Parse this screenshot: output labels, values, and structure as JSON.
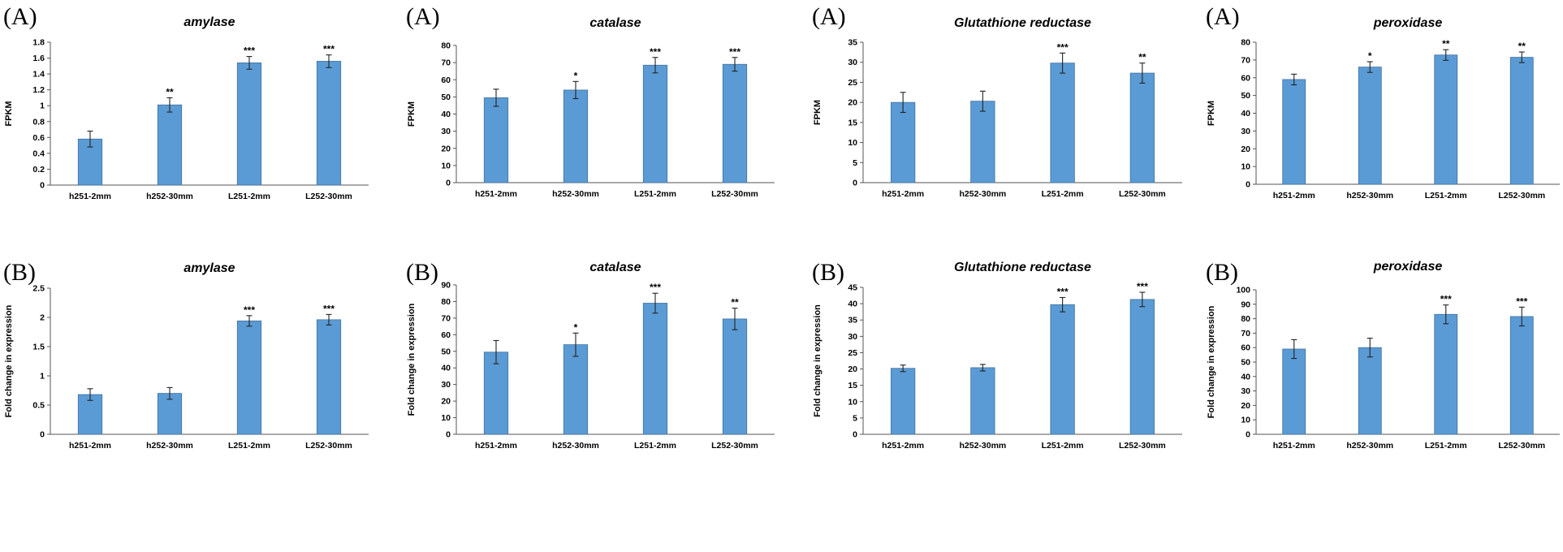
{
  "chart_data": [
    {
      "type": "bar",
      "panel": "(A)",
      "title": "amylase",
      "ylabel": "FPKM",
      "xlabel": "",
      "categories": [
        "h251-2mm",
        "h252-30mm",
        "L251-2mm",
        "L252-30mm"
      ],
      "values": [
        0.58,
        1.01,
        1.54,
        1.56
      ],
      "errors": [
        0.1,
        0.09,
        0.08,
        0.08
      ],
      "significance": [
        "",
        "**",
        "***",
        "***"
      ],
      "ylim": [
        0,
        1.8
      ],
      "ytick_labels": [
        "0",
        "0.2",
        "0.4",
        "0.6",
        "0.8",
        "1",
        "1.2",
        "1.4",
        "1.6",
        "1.8"
      ]
    },
    {
      "type": "bar",
      "panel": "(A)",
      "title": "catalase",
      "ylabel": "FPKM",
      "xlabel": "",
      "categories": [
        "h251-2mm",
        "h252-30mm",
        "L251-2mm",
        "L252-30mm"
      ],
      "values": [
        49.5,
        54,
        68.5,
        69
      ],
      "errors": [
        5,
        5,
        4.5,
        4
      ],
      "significance": [
        "",
        "*",
        "***",
        "***"
      ],
      "ylim": [
        0,
        80
      ],
      "ytick_labels": [
        "0",
        "10",
        "20",
        "30",
        "40",
        "50",
        "60",
        "70",
        "80"
      ]
    },
    {
      "type": "bar",
      "panel": "(A)",
      "title": "Glutathione reductase",
      "ylabel": "FPKM",
      "xlabel": "",
      "categories": [
        "h251-2mm",
        "h252-30mm",
        "L251-2mm",
        "L252-30mm"
      ],
      "values": [
        20,
        20.3,
        29.8,
        27.3
      ],
      "errors": [
        2.5,
        2.5,
        2.5,
        2.5
      ],
      "significance": [
        "",
        "",
        "***",
        "**"
      ],
      "ylim": [
        0,
        35
      ],
      "ytick_labels": [
        "0",
        "5",
        "10",
        "15",
        "20",
        "25",
        "30",
        "35"
      ]
    },
    {
      "type": "bar",
      "panel": "(A)",
      "title": "peroxidase",
      "ylabel": "FPKM",
      "xlabel": "",
      "categories": [
        "h251-2mm",
        "h252-30mm",
        "L251-2mm",
        "L252-30mm"
      ],
      "values": [
        59,
        66,
        72.8,
        71.5
      ],
      "errors": [
        3,
        3,
        3,
        3
      ],
      "significance": [
        "",
        "*",
        "**",
        "**"
      ],
      "ylim": [
        0,
        80
      ],
      "ytick_labels": [
        "0",
        "10",
        "20",
        "30",
        "40",
        "50",
        "60",
        "70",
        "80"
      ]
    },
    {
      "type": "bar",
      "panel": "(B)",
      "title": "amylase",
      "ylabel": "Fold change in expression",
      "xlabel": "",
      "categories": [
        "h251-2mm",
        "h252-30mm",
        "L251-2mm",
        "L252-30mm"
      ],
      "values": [
        0.68,
        0.7,
        1.94,
        1.96
      ],
      "errors": [
        0.1,
        0.1,
        0.09,
        0.09
      ],
      "significance": [
        "",
        "",
        "***",
        "***"
      ],
      "ylim": [
        0,
        2.5
      ],
      "ytick_labels": [
        "0",
        "0.5",
        "1",
        "1.5",
        "2",
        "2.5"
      ]
    },
    {
      "type": "bar",
      "panel": "(B)",
      "title": "catalase",
      "ylabel": "Fold change in expression",
      "xlabel": "",
      "categories": [
        "h251-2mm",
        "h252-30mm",
        "L251-2mm",
        "L252-30mm"
      ],
      "values": [
        49.5,
        54,
        79,
        69.5
      ],
      "errors": [
        7,
        7,
        6,
        6.5
      ],
      "significance": [
        "",
        "*",
        "***",
        "**"
      ],
      "ylim": [
        0,
        90
      ],
      "ytick_labels": [
        "0",
        "10",
        "20",
        "30",
        "40",
        "50",
        "60",
        "70",
        "80",
        "90"
      ]
    },
    {
      "type": "bar",
      "panel": "(B)",
      "title": "Glutathione reductase",
      "ylabel": "Fold change in expression",
      "xlabel": "",
      "categories": [
        "h251-2mm",
        "h252-30mm",
        "L251-2mm",
        "L252-30mm"
      ],
      "values": [
        20.2,
        20.4,
        39.7,
        41.3
      ],
      "errors": [
        1,
        1,
        2.2,
        2.2
      ],
      "significance": [
        "",
        "",
        "***",
        "***"
      ],
      "ylim": [
        0,
        45
      ],
      "ytick_labels": [
        "0",
        "5",
        "10",
        "15",
        "20",
        "25",
        "30",
        "35",
        "40",
        "45"
      ]
    },
    {
      "type": "bar",
      "panel": "(B)",
      "title": "peroxidase",
      "ylabel": "Fold change in expression",
      "xlabel": "",
      "categories": [
        "h251-2mm",
        "h252-30mm",
        "L251-2mm",
        "L252-30mm"
      ],
      "values": [
        59,
        60,
        83,
        81.5
      ],
      "errors": [
        6.5,
        6.5,
        6.5,
        6.5
      ],
      "significance": [
        "",
        "",
        "***",
        "***"
      ],
      "ylim": [
        0,
        100
      ],
      "ytick_labels": [
        "0",
        "10",
        "20",
        "30",
        "40",
        "50",
        "60",
        "70",
        "80",
        "90",
        "100"
      ]
    }
  ],
  "colors": {
    "bar": "#5b9bd5",
    "bar_edge": "#41719c"
  }
}
